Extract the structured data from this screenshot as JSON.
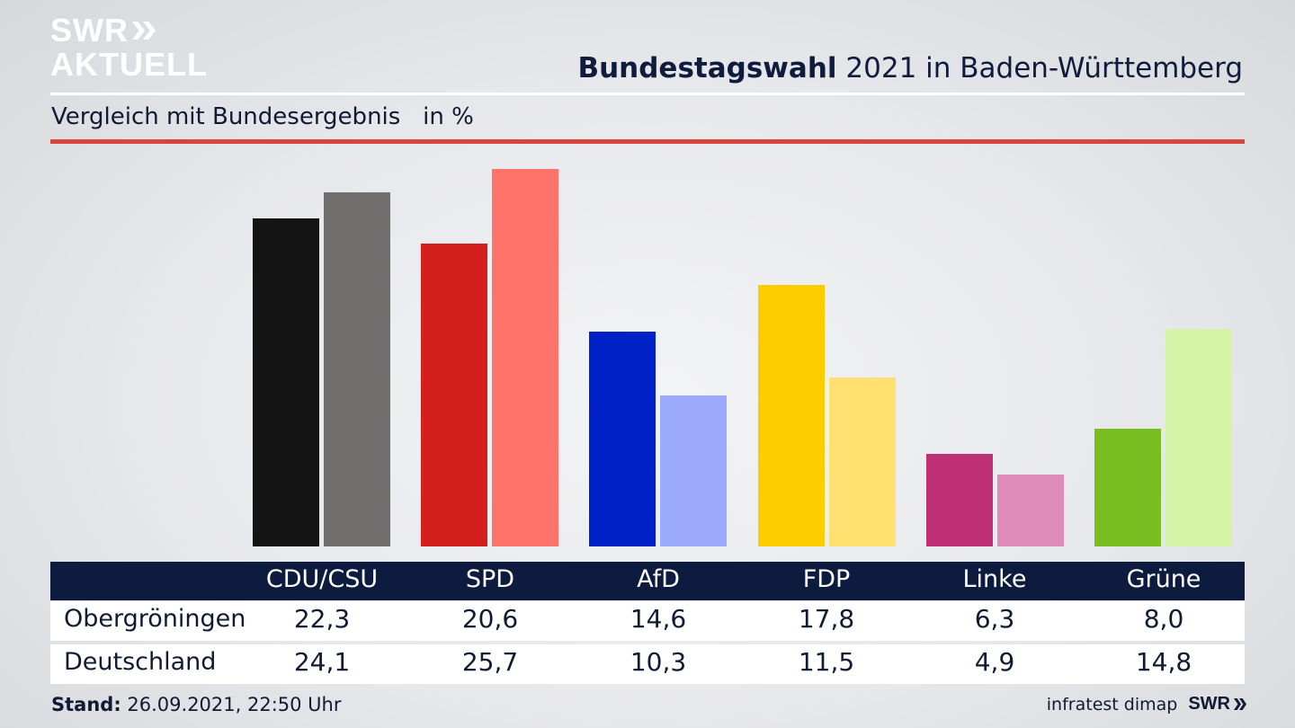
{
  "logo": {
    "line1": "SWR",
    "line2": "AKTUELL"
  },
  "title_bold": "Bundestagswahl",
  "title_rest": " 2021 in Baden-Württemberg",
  "subtitle": "Vergleich mit Bundesergebnis   in %",
  "colors": {
    "local": [
      "#141414",
      "#d41f1f",
      "#0021c8",
      "#ffcc00",
      "#be3075",
      "#78be20"
    ],
    "national": [
      "#706f6d",
      "#ff736b",
      "#9dabff",
      "#ffe070",
      "#e08cba",
      "#d4f5a8"
    ]
  },
  "chart_data": {
    "type": "bar",
    "categories": [
      "CDU/CSU",
      "SPD",
      "AfD",
      "FDP",
      "Linke",
      "Grüne"
    ],
    "series": [
      {
        "name": "Obergröningen",
        "values": [
          22.3,
          20.6,
          14.6,
          17.8,
          6.3,
          8.0
        ]
      },
      {
        "name": "Deutschland",
        "values": [
          24.1,
          25.7,
          10.3,
          11.5,
          4.9,
          14.8
        ]
      }
    ],
    "value_labels": [
      [
        "22,3",
        "20,6",
        "14,6",
        "17,8",
        "6,3",
        "8,0"
      ],
      [
        "24,1",
        "25,7",
        "10,3",
        "11,5",
        "4,9",
        "14,8"
      ]
    ],
    "ylim": [
      0,
      26
    ]
  },
  "footer": {
    "stand_label": "Stand:",
    "stand_value": " 26.09.2021, 22:50 Uhr",
    "source": "infratest dimap",
    "brand": "SWR"
  }
}
